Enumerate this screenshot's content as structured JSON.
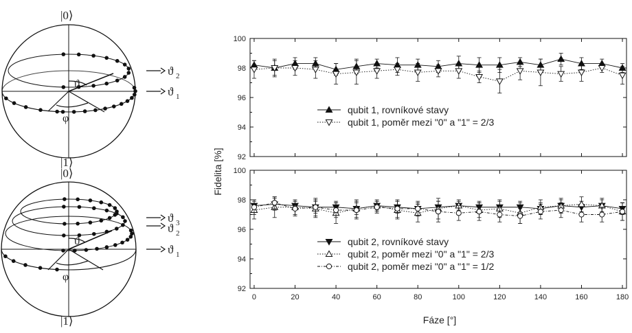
{
  "spheres": [
    {
      "top_label": "|0⟩",
      "bottom_label": "|1⟩",
      "theta_symbol": "ϑ",
      "phi_symbol": "φ",
      "arrow_labels": [
        "ϑ",
        "ϑ"
      ],
      "arrow_subscripts": [
        "2",
        "1"
      ]
    },
    {
      "top_label": "|0⟩",
      "bottom_label": "|1⟩",
      "theta_symbol": "ϑ",
      "phi_symbol": "φ",
      "arrow_labels": [
        "ϑ",
        "ϑ",
        "ϑ"
      ],
      "arrow_subscripts": [
        "3",
        "2",
        "1"
      ]
    }
  ],
  "chart_data": {
    "type": "line",
    "ylabel": "Fidelita [%]",
    "xlabel": "Fáze [°]",
    "x": [
      0,
      10,
      20,
      30,
      40,
      50,
      60,
      70,
      80,
      90,
      100,
      110,
      120,
      130,
      140,
      150,
      160,
      170,
      180
    ],
    "xlim": [
      -2,
      182
    ],
    "x_ticks": [
      0,
      20,
      40,
      60,
      80,
      100,
      120,
      140,
      160,
      180
    ],
    "panels": [
      {
        "ylim": [
          92,
          100
        ],
        "y_ticks": [
          92,
          94,
          96,
          98,
          100
        ],
        "legend_position": "center-right",
        "series": [
          {
            "name": "qubit 1, rovníkové stavy",
            "marker": "triangle-up-filled",
            "line": "solid",
            "values": [
              98.2,
              98.0,
              98.3,
              98.3,
              97.9,
              98.1,
              98.3,
              98.2,
              98.2,
              98.1,
              98.3,
              98.2,
              98.2,
              98.4,
              98.2,
              98.6,
              98.3,
              98.3,
              98.0
            ],
            "errors": [
              0.3,
              0.6,
              0.4,
              0.4,
              0.4,
              0.5,
              0.3,
              0.5,
              0.4,
              0.4,
              0.5,
              0.5,
              0.5,
              0.3,
              0.4,
              0.4,
              0.4,
              0.3,
              0.3
            ]
          },
          {
            "name": "qubit 1, poměr mezi \"0\" a \"1\" = 2/3",
            "marker": "triangle-down-open",
            "line": "dotted",
            "values": [
              97.9,
              98.0,
              98.0,
              97.9,
              97.6,
              97.7,
              97.8,
              97.9,
              97.7,
              97.8,
              97.8,
              97.4,
              97.1,
              97.8,
              97.7,
              97.6,
              97.7,
              98.0,
              97.5
            ],
            "errors": [
              0.6,
              0.5,
              0.5,
              0.6,
              0.7,
              0.8,
              0.5,
              0.4,
              0.6,
              0.4,
              0.5,
              0.4,
              0.8,
              0.6,
              0.9,
              0.5,
              0.6,
              0.3,
              0.6
            ]
          }
        ]
      },
      {
        "ylim": [
          92,
          100
        ],
        "y_ticks": [
          92,
          94,
          96,
          98,
          100
        ],
        "legend_position": "bottom-right",
        "series": [
          {
            "name": "qubit 2, rovníkové stavy",
            "marker": "triangle-down-filled",
            "line": "solid",
            "values": [
              97.6,
              97.7,
              97.6,
              97.5,
              97.5,
              97.4,
              97.6,
              97.5,
              97.4,
              97.5,
              97.6,
              97.5,
              97.5,
              97.5,
              97.4,
              97.6,
              97.5,
              97.6,
              97.4
            ],
            "errors": [
              0.4,
              0.4,
              0.3,
              0.4,
              0.4,
              0.4,
              0.3,
              0.4,
              0.4,
              0.4,
              0.3,
              0.4,
              0.4,
              0.4,
              0.4,
              0.4,
              0.4,
              0.4,
              0.4
            ]
          },
          {
            "name": "qubit 2, poměr mezi \"0\" a \"1\" = 2/3",
            "marker": "triangle-up-open",
            "line": "dotted",
            "values": [
              97.3,
              97.5,
              97.5,
              97.4,
              97.1,
              97.4,
              97.6,
              97.3,
              97.1,
              97.4,
              97.6,
              97.3,
              97.4,
              97.1,
              97.5,
              97.6,
              97.7,
              97.6,
              97.2
            ],
            "errors": [
              0.6,
              0.7,
              0.5,
              0.6,
              0.7,
              0.6,
              0.4,
              0.6,
              0.6,
              0.7,
              0.4,
              0.5,
              0.6,
              0.7,
              0.5,
              0.5,
              0.5,
              0.5,
              0.6
            ]
          },
          {
            "name": "qubit 2, poměr mezi \"0\" a \"1\" = 1/2",
            "marker": "circle-open",
            "line": "dash-dot",
            "values": [
              97.5,
              97.8,
              97.4,
              97.5,
              97.3,
              97.3,
              97.5,
              97.4,
              97.4,
              97.2,
              97.1,
              97.2,
              97.0,
              96.9,
              97.2,
              97.3,
              97.0,
              97.0,
              97.2
            ],
            "errors": [
              0.5,
              0.4,
              0.5,
              0.6,
              0.5,
              0.6,
              0.4,
              0.6,
              0.5,
              0.7,
              0.5,
              0.6,
              0.5,
              0.5,
              0.5,
              0.5,
              0.5,
              0.5,
              0.6
            ]
          }
        ]
      }
    ]
  }
}
